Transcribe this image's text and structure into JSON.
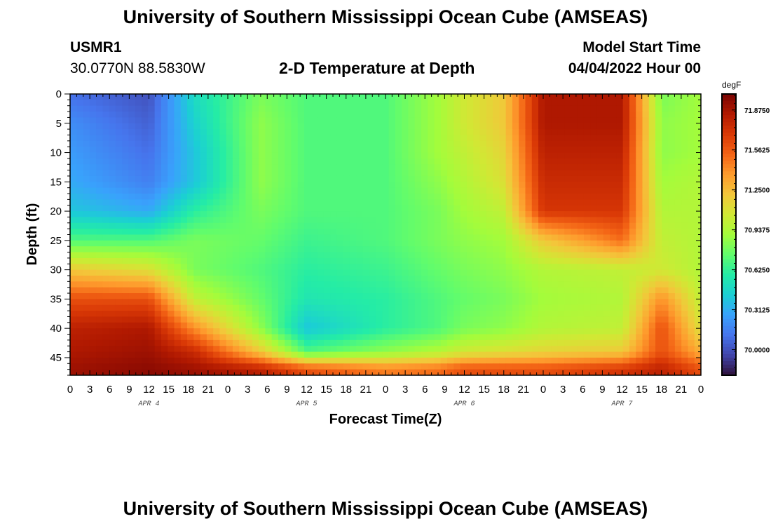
{
  "page": {
    "title": "University of Southern Mississippi Ocean Cube (AMSEAS)",
    "title_repeat": "University of Southern Mississippi Ocean Cube (AMSEAS)"
  },
  "header": {
    "station": "USMR1",
    "coords": "30.0770N  88.5830W",
    "plot_title": "2-D Temperature at Depth",
    "model_label": "Model Start Time",
    "model_time": "04/04/2022 Hour 00"
  },
  "chart_data": {
    "type": "heatmap",
    "title": "2-D Temperature at Depth",
    "xlabel": "Forecast Time(Z)",
    "ylabel": "Depth (ft)",
    "x_hours": [
      0,
      12,
      19,
      29,
      36,
      48,
      56,
      60,
      66,
      72,
      84,
      90,
      96
    ],
    "y_depths_ft": [
      0,
      5,
      10,
      15,
      20,
      25,
      30,
      35,
      40,
      44,
      47
    ],
    "values_degF": [
      [
        70.1,
        70.0,
        70.5,
        70.8,
        70.7,
        70.7,
        70.9,
        71.05,
        71.2,
        71.85,
        71.85,
        70.8,
        70.9
      ],
      [
        70.2,
        70.05,
        70.45,
        70.85,
        70.7,
        70.7,
        70.9,
        71.05,
        71.2,
        71.85,
        71.85,
        70.85,
        70.9
      ],
      [
        70.25,
        70.1,
        70.4,
        70.85,
        70.7,
        70.7,
        70.9,
        71.0,
        71.15,
        71.8,
        71.8,
        70.85,
        70.9
      ],
      [
        70.3,
        70.15,
        70.4,
        70.85,
        70.7,
        70.7,
        70.85,
        70.95,
        71.1,
        71.75,
        71.75,
        70.9,
        70.95
      ],
      [
        70.4,
        70.3,
        70.6,
        70.8,
        70.7,
        70.7,
        70.8,
        70.9,
        71.0,
        71.7,
        71.7,
        70.95,
        70.95
      ],
      [
        70.7,
        70.7,
        70.8,
        70.75,
        70.65,
        70.7,
        70.8,
        70.85,
        70.9,
        71.2,
        71.5,
        71.0,
        70.95
      ],
      [
        71.2,
        71.1,
        70.8,
        70.7,
        70.6,
        70.65,
        70.75,
        70.8,
        70.85,
        70.95,
        71.0,
        71.05,
        70.95
      ],
      [
        71.6,
        71.6,
        71.0,
        70.75,
        70.55,
        70.6,
        70.7,
        70.75,
        70.8,
        70.9,
        70.95,
        71.4,
        71.0
      ],
      [
        71.8,
        71.85,
        71.4,
        70.85,
        70.4,
        70.6,
        70.7,
        70.8,
        70.85,
        70.95,
        71.0,
        71.6,
        71.1
      ],
      [
        71.85,
        71.9,
        71.75,
        71.2,
        70.7,
        70.85,
        70.95,
        71.05,
        71.1,
        71.15,
        71.2,
        71.6,
        71.3
      ],
      [
        71.9,
        71.95,
        71.9,
        71.8,
        71.6,
        71.45,
        71.5,
        71.6,
        71.6,
        71.6,
        71.7,
        71.8,
        71.6
      ]
    ],
    "ylim": [
      0,
      48
    ],
    "x_ticks": [
      "0",
      "3",
      "6",
      "9",
      "12",
      "15",
      "18",
      "21",
      "0",
      "3",
      "6",
      "9",
      "12",
      "15",
      "18",
      "21",
      "0",
      "3",
      "6",
      "9",
      "12",
      "15",
      "18",
      "21",
      "0",
      "3",
      "6",
      "9",
      "12",
      "15",
      "18",
      "21",
      "0"
    ],
    "y_ticks": [
      "0",
      "5",
      "10",
      "15",
      "20",
      "25",
      "30",
      "35",
      "40",
      "45"
    ],
    "day_labels": [
      "APR 4",
      "APR 5",
      "APR 6",
      "APR 7"
    ],
    "colorbar": {
      "unit": "degF",
      "min": 69.8,
      "max": 72.0,
      "labels": [
        "71.8750",
        "71.5625",
        "71.2500",
        "70.9375",
        "70.6250",
        "70.3125",
        "70.0000"
      ],
      "colors": [
        "#30123b",
        "#4145ab",
        "#4675ed",
        "#39a2fc",
        "#1bcfd4",
        "#24eca6",
        "#61fc6c",
        "#a4fc3b",
        "#d1e834",
        "#f3c63a",
        "#fe9b2d",
        "#f36315",
        "#d93806",
        "#b11901",
        "#7a0403"
      ]
    }
  }
}
